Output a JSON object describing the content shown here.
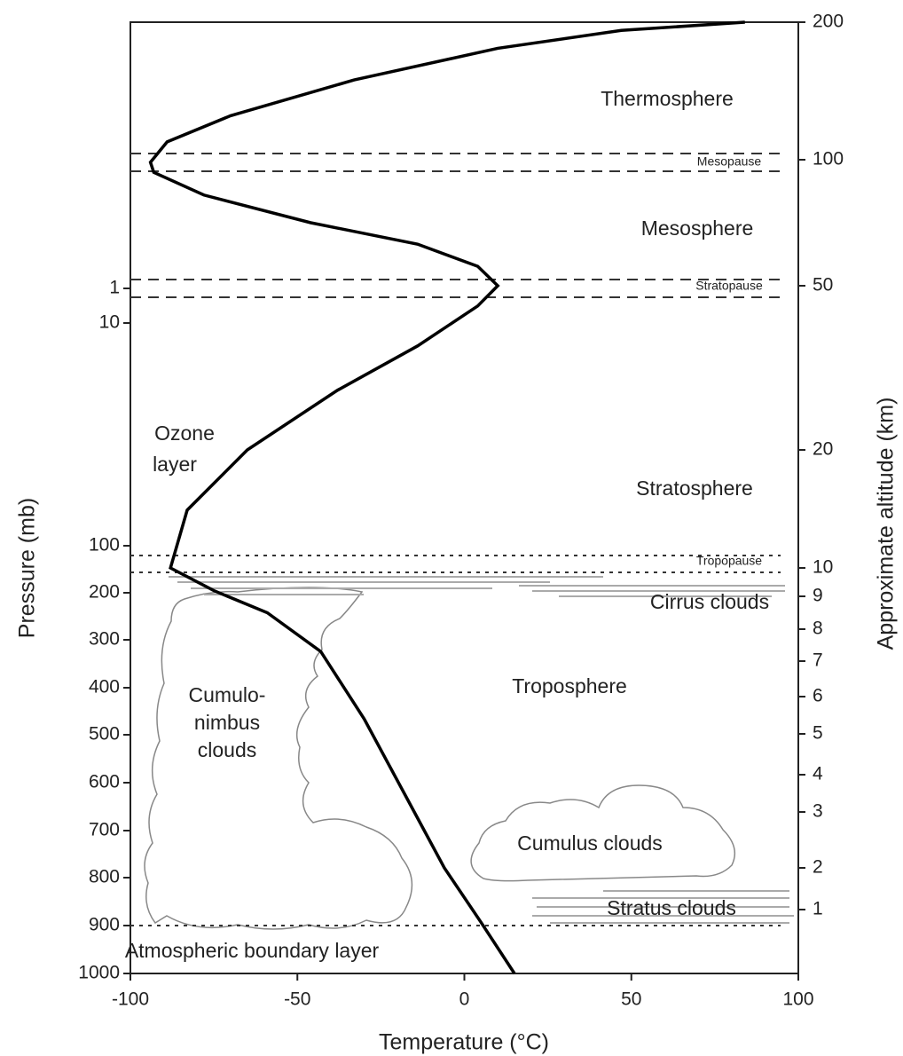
{
  "chart_data": {
    "type": "line",
    "x_label": "Temperature (°C)",
    "y_label": "Pressure (mb)",
    "y2_label": "Approximate altitude (km)",
    "xlim": [
      -100,
      100
    ],
    "xticks": [
      -100,
      -50,
      0,
      50,
      100
    ],
    "yticks": [
      1000,
      900,
      800,
      700,
      600,
      500,
      400,
      300,
      200,
      100,
      10,
      1
    ],
    "y2lim": [
      0,
      200
    ],
    "y2ticks": [
      1,
      2,
      3,
      4,
      5,
      6,
      7,
      8,
      9,
      10,
      20,
      50,
      100,
      200
    ],
    "series": [
      {
        "color": "#000000",
        "axis": "y2",
        "x": [
          15,
          5,
          -6,
          -18,
          -30,
          -43,
          -59,
          -75,
          -88,
          -83,
          -65,
          -38,
          -14,
          4,
          10,
          4,
          -14,
          -46,
          -78,
          -93,
          -94,
          -89,
          -70,
          -33,
          10,
          47,
          84
        ],
        "values": [
          0,
          0.8,
          2,
          3.5,
          5.4,
          7.3,
          8.5,
          9.2,
          10,
          14.9,
          20,
          30.9,
          39,
          46.3,
          50,
          57.7,
          66.5,
          75,
          86,
          95,
          99,
          113,
          132,
          158,
          181,
          194,
          200
        ]
      }
    ],
    "annotations": [
      "Thermosphere",
      "Mesopause",
      "Mesosphere",
      "Stratopause",
      "Ozone",
      "layer",
      "Stratosphere",
      "Tropopause",
      "Cirrus clouds",
      "Cumulo-",
      "nimbus",
      "clouds",
      "Troposphere",
      "Cumulus clouds",
      "Stratus clouds",
      "Atmospheric boundary layer"
    ]
  }
}
